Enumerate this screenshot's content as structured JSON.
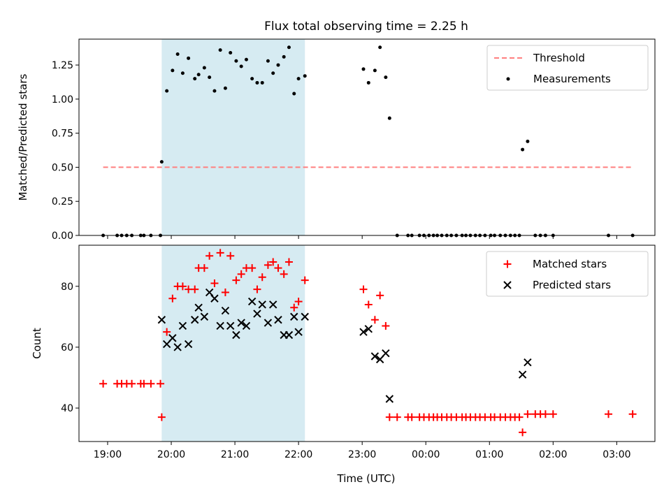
{
  "title": "Flux total observing time = 2.25 h",
  "xlabel": "Time (UTC)",
  "x_tick_labels": [
    "19:00",
    "20:00",
    "21:00",
    "22:00",
    "23:00",
    "00:00",
    "01:00",
    "02:00",
    "03:00"
  ],
  "chart_data": [
    {
      "type": "scatter",
      "ylabel": "Matched/Predicted stars",
      "ylim": [
        0,
        1.44
      ],
      "y_tick_labels": [
        "0.00",
        "0.25",
        "0.50",
        "0.75",
        "1.00",
        "1.25"
      ],
      "x_range_hours": [
        18.55,
        27.6
      ],
      "shaded_interval": {
        "start": 19.85,
        "end": 22.1,
        "color": "#add8e6"
      },
      "legend": {
        "placement": "upper right",
        "entries": [
          "Threshold",
          "Measurements"
        ]
      },
      "series": [
        {
          "name": "Threshold",
          "kind": "dashed-line",
          "color": "#ff7f7f",
          "x": [
            18.93,
            27.25
          ],
          "y": [
            0.5,
            0.5
          ]
        },
        {
          "name": "Measurements",
          "kind": "points",
          "color": "#000000",
          "x": [
            18.93,
            19.15,
            19.22,
            19.3,
            19.38,
            19.52,
            19.57,
            19.68,
            19.83,
            19.85,
            19.93,
            20.02,
            20.1,
            20.18,
            20.27,
            20.37,
            20.43,
            20.52,
            20.6,
            20.68,
            20.77,
            20.85,
            20.93,
            21.02,
            21.1,
            21.18,
            21.27,
            21.35,
            21.43,
            21.52,
            21.6,
            21.68,
            21.77,
            21.85,
            21.93,
            22.0,
            22.1,
            23.02,
            23.1,
            23.2,
            23.28,
            23.37,
            23.43,
            23.55,
            23.72,
            23.78,
            23.9,
            23.97,
            24.05,
            24.12,
            24.18,
            24.25,
            24.33,
            24.4,
            24.48,
            24.57,
            24.63,
            24.7,
            24.78,
            24.85,
            24.93,
            25.02,
            25.08,
            25.17,
            25.25,
            25.33,
            25.4,
            25.47,
            25.52,
            25.6,
            25.72,
            25.8,
            25.88,
            26.0,
            26.87,
            27.25
          ],
          "y": [
            0,
            0,
            0,
            0,
            0,
            0,
            0,
            0,
            0,
            0.54,
            1.06,
            1.21,
            1.33,
            1.19,
            1.3,
            1.15,
            1.18,
            1.23,
            1.16,
            1.06,
            1.36,
            1.08,
            1.34,
            1.28,
            1.24,
            1.29,
            1.15,
            1.12,
            1.12,
            1.28,
            1.19,
            1.25,
            1.31,
            1.38,
            1.04,
            1.15,
            1.17,
            1.22,
            1.12,
            1.21,
            1.38,
            1.16,
            0.86,
            0,
            0,
            0,
            0,
            0,
            0,
            0,
            0,
            0,
            0,
            0,
            0,
            0,
            0,
            0,
            0,
            0,
            0,
            0,
            0,
            0,
            0,
            0,
            0,
            0,
            0.63,
            0.69,
            0,
            0,
            0,
            0,
            0,
            0
          ]
        }
      ]
    },
    {
      "type": "scatter",
      "ylabel": "Count",
      "ylim": [
        29,
        93.5
      ],
      "y_tick_labels": [
        "40",
        "60",
        "80"
      ],
      "x_range_hours": [
        18.55,
        27.6
      ],
      "shaded_interval": {
        "start": 19.85,
        "end": 22.1,
        "color": "#add8e6"
      },
      "legend": {
        "placement": "upper right",
        "entries": [
          "Matched stars",
          "Predicted stars"
        ]
      },
      "series": [
        {
          "name": "Matched stars",
          "marker": "plus",
          "color": "#ff0000",
          "x": [
            18.93,
            19.15,
            19.22,
            19.3,
            19.38,
            19.52,
            19.57,
            19.68,
            19.83,
            19.85,
            19.93,
            20.02,
            20.1,
            20.18,
            20.27,
            20.37,
            20.43,
            20.52,
            20.6,
            20.68,
            20.77,
            20.85,
            20.93,
            21.02,
            21.1,
            21.18,
            21.27,
            21.35,
            21.43,
            21.52,
            21.6,
            21.68,
            21.77,
            21.85,
            21.93,
            22.0,
            22.1,
            23.02,
            23.1,
            23.2,
            23.28,
            23.37,
            23.43,
            23.55,
            23.72,
            23.78,
            23.9,
            23.97,
            24.05,
            24.12,
            24.18,
            24.25,
            24.33,
            24.4,
            24.48,
            24.57,
            24.63,
            24.7,
            24.78,
            24.85,
            24.93,
            25.02,
            25.08,
            25.17,
            25.25,
            25.33,
            25.4,
            25.47,
            25.52,
            25.6,
            25.72,
            25.8,
            25.88,
            26.0,
            26.87,
            27.25
          ],
          "y": [
            48,
            48,
            48,
            48,
            48,
            48,
            48,
            48,
            48,
            37,
            65,
            76,
            80,
            80,
            79,
            79,
            86,
            86,
            90,
            81,
            91,
            78,
            90,
            82,
            84,
            86,
            86,
            79,
            83,
            87,
            88,
            86,
            84,
            88,
            73,
            75,
            82,
            79,
            74,
            69,
            77,
            67,
            37,
            37,
            37,
            37,
            37,
            37,
            37,
            37,
            37,
            37,
            37,
            37,
            37,
            37,
            37,
            37,
            37,
            37,
            37,
            37,
            37,
            37,
            37,
            37,
            37,
            37,
            32,
            38,
            38,
            38,
            38,
            38,
            38,
            38
          ]
        },
        {
          "name": "Predicted stars",
          "marker": "x",
          "color": "#000000",
          "x": [
            19.85,
            19.93,
            20.02,
            20.1,
            20.18,
            20.27,
            20.37,
            20.43,
            20.52,
            20.6,
            20.68,
            20.77,
            20.85,
            20.93,
            21.02,
            21.1,
            21.18,
            21.27,
            21.35,
            21.43,
            21.52,
            21.6,
            21.68,
            21.77,
            21.85,
            21.93,
            22.0,
            22.1,
            23.02,
            23.1,
            23.2,
            23.28,
            23.37,
            23.43,
            25.52,
            25.6
          ],
          "y": [
            69,
            61,
            63,
            60,
            67,
            61,
            69,
            73,
            70,
            78,
            76,
            67,
            72,
            67,
            64,
            68,
            67,
            75,
            71,
            74,
            68,
            74,
            69,
            64,
            64,
            70,
            65,
            70,
            65,
            66,
            57,
            56,
            58,
            43,
            51,
            55
          ]
        }
      ]
    }
  ]
}
